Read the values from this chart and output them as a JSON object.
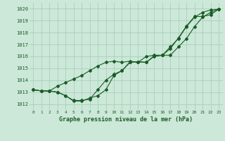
{
  "xlabel": "Graphe pression niveau de la mer (hPa)",
  "bg_color": "#cce8d8",
  "grid_color": "#aacfbc",
  "line_color": "#1a5c28",
  "ylim": [
    1011.5,
    1020.5
  ],
  "xlim": [
    -0.5,
    23.5
  ],
  "yticks": [
    1012,
    1013,
    1014,
    1015,
    1016,
    1017,
    1018,
    1019,
    1020
  ],
  "xticks": [
    0,
    1,
    2,
    3,
    4,
    5,
    6,
    7,
    8,
    9,
    10,
    11,
    12,
    13,
    14,
    15,
    16,
    17,
    18,
    19,
    20,
    21,
    22,
    23
  ],
  "line1": [
    1013.2,
    1013.1,
    1013.1,
    1013.5,
    1013.8,
    1014.1,
    1014.4,
    1014.8,
    1015.2,
    1015.5,
    1015.6,
    1015.5,
    1015.6,
    1015.5,
    1016.0,
    1016.1,
    1016.1,
    1016.8,
    1017.5,
    1018.5,
    1019.3,
    1019.7,
    1019.9,
    1019.97
  ],
  "line2": [
    1013.2,
    1013.1,
    1013.1,
    1013.0,
    1012.7,
    1012.3,
    1012.3,
    1012.4,
    1013.2,
    1014.0,
    1014.5,
    1014.8,
    1015.55,
    1015.55,
    1015.5,
    1016.0,
    1016.1,
    1016.1,
    1016.8,
    1017.5,
    1018.5,
    1019.3,
    1019.7,
    1019.97
  ],
  "line3": [
    1013.2,
    1013.1,
    1013.1,
    1013.0,
    1012.7,
    1012.25,
    1012.25,
    1012.5,
    1012.7,
    1013.2,
    1014.4,
    1014.8,
    1015.5,
    1015.55,
    1015.5,
    1016.05,
    1016.1,
    1016.65,
    1017.55,
    1018.55,
    1019.35,
    1019.35,
    1019.5,
    1019.97
  ]
}
